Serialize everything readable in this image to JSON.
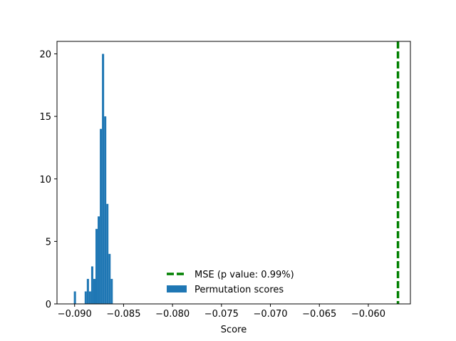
{
  "chart_data": {
    "type": "bar",
    "title": "",
    "xlabel": "Score",
    "ylabel": "",
    "xlim": [
      -0.0918,
      -0.0557
    ],
    "ylim": [
      0,
      21
    ],
    "xticks": [
      -0.09,
      -0.085,
      -0.08,
      -0.075,
      -0.07,
      -0.065,
      -0.06
    ],
    "xtick_labels": [
      "−0.090",
      "−0.085",
      "−0.080",
      "−0.075",
      "−0.070",
      "−0.065",
      "−0.060"
    ],
    "yticks": [
      0,
      5,
      10,
      15,
      20
    ],
    "ytick_labels": [
      "0",
      "5",
      "10",
      "15",
      "20"
    ],
    "grid": false,
    "legend": {
      "position": "lower-center",
      "entries": [
        "MSE (p value: 0.99%)",
        "Permutation scores"
      ]
    },
    "histogram": {
      "name": "Permutation scores",
      "color": "#1f77b4",
      "bin_start": -0.09008,
      "bin_width": 0.000221,
      "counts": [
        1,
        0,
        0,
        0,
        0,
        1,
        2,
        1,
        3,
        2,
        6,
        7,
        14,
        20,
        15,
        8,
        4,
        2
      ]
    },
    "reference_line": {
      "name": "MSE (p value: 0.99%)",
      "x": -0.05697,
      "color": "#008000",
      "style": "dashed"
    }
  }
}
